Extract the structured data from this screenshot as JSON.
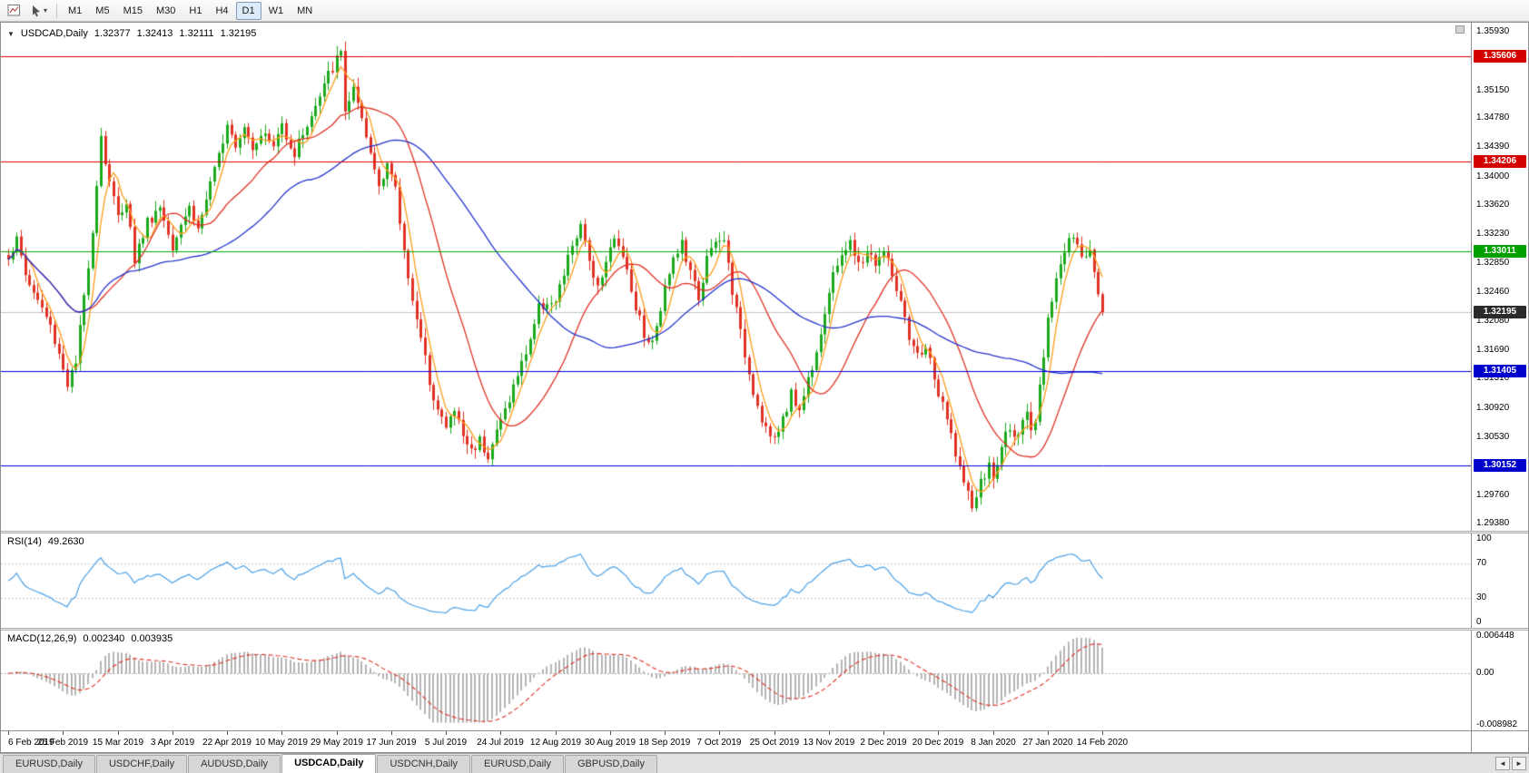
{
  "toolbar": {
    "template_icon": "chart-template",
    "cursor_icon": "cursor-arrow",
    "dropdown_icon": "▾",
    "timeframes": [
      {
        "label": "M1",
        "active": false
      },
      {
        "label": "M5",
        "active": false
      },
      {
        "label": "M15",
        "active": false
      },
      {
        "label": "M30",
        "active": false
      },
      {
        "label": "H1",
        "active": false
      },
      {
        "label": "H4",
        "active": false
      },
      {
        "label": "D1",
        "active": true
      },
      {
        "label": "W1",
        "active": false
      },
      {
        "label": "MN",
        "active": false
      }
    ]
  },
  "chart": {
    "header": {
      "collapse_icon": "▼",
      "symbol": "USDCAD,Daily",
      "open": "1.32377",
      "high": "1.32413",
      "low": "1.32111",
      "close": "1.32195"
    },
    "price_axis": {
      "ticks": [
        "1.35930",
        "1.35540",
        "1.35150",
        "1.34780",
        "1.34390",
        "1.34000",
        "1.33620",
        "1.33230",
        "1.32850",
        "1.32460",
        "1.32080",
        "1.31690",
        "1.31310",
        "1.30920",
        "1.30530",
        "1.30150",
        "1.29760",
        "1.29380"
      ],
      "badges": [
        {
          "text": "1.35606",
          "price": 1.35606,
          "color": "#d40000"
        },
        {
          "text": "1.34206",
          "price": 1.34206,
          "color": "#d40000"
        },
        {
          "text": "1.33011",
          "price": 1.33011,
          "color": "#00a000"
        },
        {
          "text": "1.32195",
          "price": 1.32195,
          "color": "#2b2b2b"
        },
        {
          "text": "1.31405",
          "price": 1.31405,
          "color": "#0000cc"
        },
        {
          "text": "1.30152",
          "price": 1.30152,
          "color": "#0000cc"
        }
      ]
    }
  },
  "chart_data": {
    "type": "candlestick",
    "symbol": "USDCAD",
    "timeframe": "Daily",
    "ohlc_display": {
      "open": 1.32377,
      "high": 1.32413,
      "low": 1.32111,
      "close": 1.32195
    },
    "y_range": [
      1.2938,
      1.3593
    ],
    "x_labels": [
      "6 Feb 2019",
      "25 Feb 2019",
      "15 Mar 2019",
      "3 Apr 2019",
      "22 Apr 2019",
      "10 May 2019",
      "29 May 2019",
      "17 Jun 2019",
      "5 Jul 2019",
      "24 Jul 2019",
      "12 Aug 2019",
      "30 Aug 2019",
      "18 Sep 2019",
      "7 Oct 2019",
      "25 Oct 2019",
      "13 Nov 2019",
      "2 Dec 2019",
      "20 Dec 2019",
      "8 Jan 2020",
      "27 Jan 2020",
      "14 Feb 2020"
    ],
    "bars_per_x_label": 13,
    "bar_count": 261,
    "close_path_control_points": [
      [
        0,
        1.3295
      ],
      [
        2,
        1.3315
      ],
      [
        4,
        1.327
      ],
      [
        6,
        1.3245
      ],
      [
        8,
        1.3225
      ],
      [
        10,
        1.32
      ],
      [
        12,
        1.3165
      ],
      [
        14,
        1.3125
      ],
      [
        16,
        1.315
      ],
      [
        18,
        1.324
      ],
      [
        20,
        1.333
      ],
      [
        22,
        1.3455
      ],
      [
        23,
        1.342
      ],
      [
        24,
        1.3395
      ],
      [
        26,
        1.3345
      ],
      [
        28,
        1.337
      ],
      [
        30,
        1.329
      ],
      [
        33,
        1.334
      ],
      [
        36,
        1.336
      ],
      [
        39,
        1.331
      ],
      [
        41,
        1.334
      ],
      [
        43,
        1.336
      ],
      [
        45,
        1.333
      ],
      [
        47,
        1.337
      ],
      [
        49,
        1.3405
      ],
      [
        52,
        1.3475
      ],
      [
        54,
        1.3445
      ],
      [
        56,
        1.347
      ],
      [
        58,
        1.344
      ],
      [
        60,
        1.346
      ],
      [
        63,
        1.344
      ],
      [
        65,
        1.347
      ],
      [
        68,
        1.343
      ],
      [
        70,
        1.346
      ],
      [
        72,
        1.348
      ],
      [
        74,
        1.3505
      ],
      [
        76,
        1.3535
      ],
      [
        78,
        1.3555
      ],
      [
        79,
        1.3565
      ],
      [
        80,
        1.349
      ],
      [
        82,
        1.3515
      ],
      [
        84,
        1.347
      ],
      [
        86,
        1.343
      ],
      [
        88,
        1.339
      ],
      [
        90,
        1.342
      ],
      [
        92,
        1.338
      ],
      [
        94,
        1.33
      ],
      [
        96,
        1.324
      ],
      [
        98,
        1.318
      ],
      [
        100,
        1.313
      ],
      [
        102,
        1.309
      ],
      [
        104,
        1.3065
      ],
      [
        106,
        1.309
      ],
      [
        108,
        1.3055
      ],
      [
        110,
        1.3035
      ],
      [
        112,
        1.305
      ],
      [
        114,
        1.303
      ],
      [
        116,
        1.306
      ],
      [
        118,
        1.309
      ],
      [
        120,
        1.312
      ],
      [
        122,
        1.315
      ],
      [
        124,
        1.3185
      ],
      [
        126,
        1.3225
      ],
      [
        128,
        1.3235
      ],
      [
        130,
        1.323
      ],
      [
        132,
        1.327
      ],
      [
        134,
        1.331
      ],
      [
        136,
        1.333
      ],
      [
        138,
        1.329
      ],
      [
        140,
        1.3255
      ],
      [
        142,
        1.329
      ],
      [
        144,
        1.3315
      ],
      [
        146,
        1.33
      ],
      [
        148,
        1.325
      ],
      [
        150,
        1.321
      ],
      [
        152,
        1.3175
      ],
      [
        154,
        1.3195
      ],
      [
        156,
        1.326
      ],
      [
        158,
        1.329
      ],
      [
        160,
        1.331
      ],
      [
        162,
        1.327
      ],
      [
        164,
        1.324
      ],
      [
        166,
        1.329
      ],
      [
        168,
        1.331
      ],
      [
        170,
        1.3315
      ],
      [
        172,
        1.325
      ],
      [
        174,
        1.319
      ],
      [
        176,
        1.314
      ],
      [
        178,
        1.3095
      ],
      [
        180,
        1.3065
      ],
      [
        182,
        1.3045
      ],
      [
        184,
        1.308
      ],
      [
        186,
        1.311
      ],
      [
        188,
        1.309
      ],
      [
        190,
        1.313
      ],
      [
        192,
        1.317
      ],
      [
        194,
        1.322
      ],
      [
        196,
        1.3265
      ],
      [
        198,
        1.33
      ],
      [
        200,
        1.331
      ],
      [
        202,
        1.328
      ],
      [
        204,
        1.33
      ],
      [
        206,
        1.3285
      ],
      [
        208,
        1.33
      ],
      [
        210,
        1.327
      ],
      [
        212,
        1.323
      ],
      [
        214,
        1.318
      ],
      [
        216,
        1.316
      ],
      [
        218,
        1.3175
      ],
      [
        220,
        1.313
      ],
      [
        221,
        1.311
      ],
      [
        223,
        1.3075
      ],
      [
        225,
        1.3035
      ],
      [
        227,
        1.299
      ],
      [
        229,
        1.296
      ],
      [
        231,
        1.299
      ],
      [
        233,
        1.3015
      ],
      [
        234,
        1.2995
      ],
      [
        236,
        1.304
      ],
      [
        238,
        1.307
      ],
      [
        240,
        1.305
      ],
      [
        242,
        1.3085
      ],
      [
        243,
        1.3055
      ],
      [
        244,
        1.3075
      ],
      [
        245,
        1.3115
      ],
      [
        246,
        1.3165
      ],
      [
        247,
        1.3215
      ],
      [
        249,
        1.3265
      ],
      [
        251,
        1.33
      ],
      [
        253,
        1.332
      ],
      [
        255,
        1.329
      ],
      [
        257,
        1.3305
      ],
      [
        258,
        1.328
      ],
      [
        259,
        1.325
      ],
      [
        260,
        1.32195
      ]
    ],
    "horizontal_lines": [
      {
        "price": 1.35606,
        "color": "#e00000"
      },
      {
        "price": 1.34206,
        "color": "#e00000"
      },
      {
        "price": 1.33011,
        "color": "#00a800"
      },
      {
        "price": 1.31405,
        "color": "#0000d8"
      },
      {
        "price": 1.30152,
        "color": "#0000d8"
      }
    ],
    "current_price": 1.32195,
    "candle_colors": {
      "bull": "#1caa1c",
      "bear": "#e03224"
    },
    "moving_averages": [
      {
        "period": 5,
        "color": "#ff9c1a"
      },
      {
        "period": 20,
        "color": "#e03224"
      },
      {
        "period": 50,
        "color": "#2433cf"
      }
    ],
    "indicators": [
      {
        "type": "RSI",
        "label": "RSI(14)",
        "value": "49.2630",
        "range": [
          0,
          100
        ],
        "levels": [
          70,
          30
        ],
        "axis_ticks": [
          {
            "text": "100",
            "value": 100
          },
          {
            "text": "70",
            "value": 70
          },
          {
            "text": "30",
            "value": 30
          },
          {
            "text": "0",
            "value": 0
          }
        ],
        "line_color": "#4aa0e6"
      },
      {
        "type": "MACD",
        "label": "MACD(12,26,9)",
        "values": [
          "0.002340",
          "0.003935"
        ],
        "y_range": [
          -0.008982,
          0.006448
        ],
        "axis_ticks": [
          {
            "text": "0.006448",
            "value": 0.006448
          },
          {
            "text": "0.00",
            "value": 0
          },
          {
            "text": "-0.008982",
            "value": -0.008982
          }
        ],
        "histogram_color": "#b4b4b4",
        "signal_color": "#e03224"
      }
    ]
  },
  "tabs": {
    "scroll_left": "◄",
    "scroll_right": "►",
    "items": [
      {
        "label": "EURUSD,Daily",
        "active": false
      },
      {
        "label": "USDCHF,Daily",
        "active": false
      },
      {
        "label": "AUDUSD,Daily",
        "active": false
      },
      {
        "label": "USDCAD,Daily",
        "active": true
      },
      {
        "label": "USDCNH,Daily",
        "active": false
      },
      {
        "label": "EURUSD,Daily",
        "active": false
      },
      {
        "label": "GBPUSD,Daily",
        "active": false
      }
    ]
  }
}
